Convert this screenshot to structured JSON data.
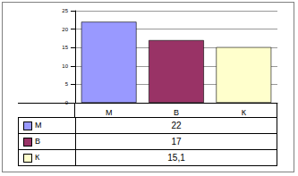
{
  "chart_data": {
    "type": "bar",
    "categories": [
      "М",
      "В",
      "К"
    ],
    "values": [
      22,
      17,
      15.1
    ],
    "value_labels": [
      "22",
      "17",
      "15,1"
    ],
    "colors": [
      "#9999ff",
      "#993366",
      "#ffffcc"
    ],
    "ylim": [
      0,
      25
    ],
    "yticks": [
      0,
      5,
      10,
      15,
      20,
      25
    ],
    "grid": true
  }
}
